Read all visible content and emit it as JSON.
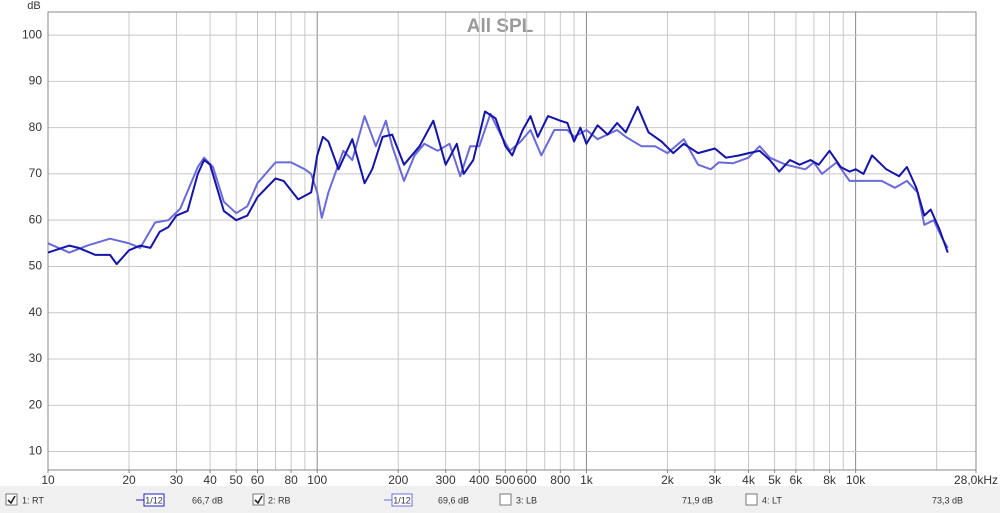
{
  "chart_data": {
    "type": "line",
    "title": "All SPL",
    "y_label": "dB",
    "log_x": true,
    "grid": true,
    "minor_grid": true,
    "xlim": [
      10,
      28000
    ],
    "ylim": [
      6,
      105
    ],
    "yticks": [
      10,
      20,
      30,
      40,
      50,
      60,
      70,
      80,
      90,
      100
    ],
    "xticks": [
      10,
      20,
      30,
      40,
      50,
      60,
      80,
      100,
      200,
      300,
      400,
      500,
      600,
      800,
      {
        "value": 1000,
        "label": "1k"
      },
      {
        "value": 2000,
        "label": "2k"
      },
      {
        "value": 3000,
        "label": "3k"
      },
      {
        "value": 4000,
        "label": "4k"
      },
      {
        "value": 5000,
        "label": "5k"
      },
      {
        "value": 6000,
        "label": "6k"
      },
      {
        "value": 8000,
        "label": "8k"
      },
      {
        "value": 10000,
        "label": "10k"
      },
      {
        "value": 28000,
        "label": "28,0kHz"
      }
    ],
    "series": [
      {
        "name": "1: RT",
        "color": "#1414a8",
        "x": [
          10,
          12,
          13,
          15,
          17,
          18,
          20,
          22,
          24,
          26,
          28,
          30,
          33,
          36,
          38,
          40,
          45,
          50,
          55,
          60,
          70,
          75,
          85,
          95,
          100,
          105,
          110,
          120,
          135,
          150,
          160,
          175,
          190,
          210,
          240,
          270,
          300,
          330,
          350,
          380,
          420,
          460,
          500,
          530,
          580,
          620,
          660,
          720,
          800,
          850,
          900,
          950,
          1000,
          1100,
          1200,
          1300,
          1400,
          1550,
          1700,
          1900,
          2100,
          2300,
          2600,
          3000,
          3300,
          3700,
          4000,
          4400,
          4800,
          5200,
          5700,
          6200,
          6800,
          7300,
          8000,
          8800,
          9500,
          10000,
          10700,
          11500,
          13000,
          14500,
          15500,
          16800,
          18000,
          19000,
          20500,
          22000
        ],
        "values": [
          53,
          54.5,
          54,
          52.5,
          52.5,
          50.5,
          53.5,
          54.5,
          54,
          57.5,
          58.5,
          61,
          62,
          70,
          73,
          72,
          62,
          60,
          61,
          65,
          69,
          68.5,
          64.5,
          66,
          74,
          78,
          77,
          71,
          77.5,
          68,
          71,
          78,
          78.5,
          72,
          76,
          81.5,
          72,
          76.5,
          70,
          73,
          83.5,
          82,
          76,
          74,
          79.5,
          82.5,
          78,
          82.5,
          81.5,
          81,
          77,
          80,
          76.5,
          80.5,
          78.5,
          81,
          79,
          84.5,
          79,
          77,
          74.5,
          76.5,
          74.5,
          75.5,
          73.5,
          74,
          74.5,
          75,
          73,
          70.5,
          73,
          72,
          73,
          72,
          75,
          71.5,
          70.5,
          71,
          70,
          74,
          71,
          69.5,
          71.5,
          67,
          61,
          62.3,
          58,
          53
        ]
      },
      {
        "name": "2: RB",
        "color": "#6a6ad8",
        "x": [
          10,
          12,
          14,
          17,
          20,
          22,
          25,
          28,
          31,
          36,
          38,
          41,
          45,
          50,
          55,
          60,
          70,
          80,
          90,
          95,
          100,
          104,
          110,
          125,
          135,
          150,
          165,
          180,
          190,
          210,
          230,
          250,
          280,
          310,
          340,
          370,
          400,
          440,
          480,
          520,
          570,
          620,
          680,
          760,
          850,
          900,
          1000,
          1100,
          1300,
          1400,
          1600,
          1800,
          2000,
          2300,
          2600,
          2900,
          3100,
          3500,
          4000,
          4400,
          4800,
          5500,
          6500,
          7000,
          7500,
          8500,
          9500,
          11000,
          12500,
          14000,
          15500,
          17000,
          18000,
          19500,
          21000,
          22000
        ],
        "values": [
          55,
          53,
          54.5,
          56,
          55,
          54,
          59.5,
          60,
          62.5,
          71.5,
          73.5,
          71.5,
          64,
          61.5,
          63,
          68,
          72.5,
          72.5,
          71,
          70,
          66,
          60.5,
          66,
          75,
          73,
          82.5,
          76,
          81.5,
          76,
          68.5,
          74,
          76.5,
          75,
          76.5,
          69.5,
          76,
          76,
          83,
          78.5,
          75,
          77,
          79.5,
          74,
          79.5,
          79.5,
          78,
          79.5,
          77.5,
          79.5,
          78,
          76,
          76,
          74.5,
          77.5,
          72,
          71,
          72.5,
          72.3,
          73.5,
          76,
          73.5,
          72,
          71,
          72.5,
          70,
          72.5,
          68.5,
          68.5,
          68.5,
          67,
          68.5,
          66,
          59,
          60,
          56,
          54
        ]
      }
    ]
  },
  "legend": [
    {
      "name": "1: RT",
      "color": "#2020c0",
      "checked": true,
      "smoothing": "1/12",
      "level": "66,7 dB"
    },
    {
      "name": "2: RB",
      "color": "#7070e0",
      "checked": true,
      "smoothing": "1/12",
      "level": "69,6 dB"
    },
    {
      "name": "3: LB",
      "color": "#f0a050",
      "checked": false,
      "level": "71,9 dB"
    },
    {
      "name": "4: LT",
      "color": "#e02020",
      "checked": false,
      "level": "73,3 dB"
    }
  ]
}
